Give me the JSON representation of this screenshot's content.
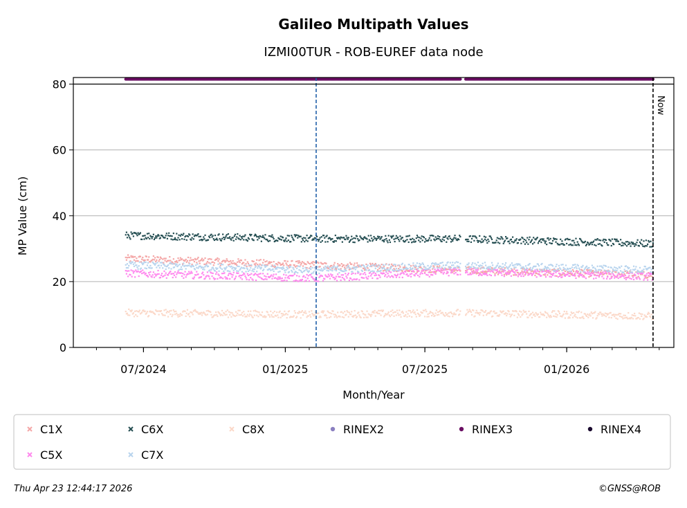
{
  "chart_data": {
    "type": "scatter",
    "title": "Galileo Multipath Values",
    "subtitle": "IZMI00TUR - ROB-EUREF data node",
    "xlabel": "Month/Year",
    "ylabel": "MP Value (cm)",
    "xlim": [
      "2024-04-01",
      "2026-05-20"
    ],
    "ylim": [
      0,
      82
    ],
    "yticks": [
      0,
      20,
      40,
      60,
      80
    ],
    "ytick_labels": [
      "0",
      "20",
      "40",
      "60",
      "80"
    ],
    "xticks": [
      "2024-07-01",
      "2025-01-01",
      "2025-07-01",
      "2026-01-01"
    ],
    "xtick_labels": [
      "07/2024",
      "01/2025",
      "07/2025",
      "01/2026"
    ],
    "grid": "horizontal",
    "data_start": "2024-06-08",
    "data_end": "2026-04-23",
    "gaps": [
      [
        "2025-08-17",
        "2025-08-22"
      ]
    ],
    "event_line_date": "2025-02-10",
    "now_date": "2026-04-23",
    "now_label": "Now",
    "series": [
      {
        "name": "C1X",
        "color": "#f4a6a6",
        "marker": "x",
        "segments": [
          [
            "2024-06-08",
            27
          ],
          [
            "2025-02-10",
            25
          ],
          [
            "2025-08-15",
            23.5
          ],
          [
            "2026-04-23",
            22
          ]
        ]
      },
      {
        "name": "C6X",
        "color": "#254e52",
        "marker": "x",
        "segments": [
          [
            "2024-06-08",
            34
          ],
          [
            "2025-02-10",
            33
          ],
          [
            "2025-08-15",
            33
          ],
          [
            "2026-04-23",
            31.5
          ]
        ]
      },
      {
        "name": "C8X",
        "color": "#fbd8c8",
        "marker": "x",
        "segments": [
          [
            "2024-06-08",
            10.5
          ],
          [
            "2025-02-10",
            10
          ],
          [
            "2025-08-15",
            10.5
          ],
          [
            "2026-04-23",
            9.5
          ]
        ]
      },
      {
        "name": "RINEX2",
        "color": "#8a7fc0",
        "marker": "o",
        "segments": []
      },
      {
        "name": "RINEX3",
        "color": "#6a0f63",
        "marker": "o",
        "value": 81.5,
        "segments": [
          [
            "2024-06-08",
            81.5
          ],
          [
            "2026-04-23",
            81.5
          ]
        ]
      },
      {
        "name": "RINEX4",
        "color": "#1a0a2e",
        "marker": "o",
        "segments": []
      },
      {
        "name": "C5X",
        "color": "#ff88ee",
        "marker": "x",
        "segments": [
          [
            "2024-06-08",
            22.5
          ],
          [
            "2025-02-10",
            21
          ],
          [
            "2025-08-15",
            23
          ],
          [
            "2026-04-23",
            21.5
          ]
        ]
      },
      {
        "name": "C7X",
        "color": "#b8d4ee",
        "marker": "x",
        "segments": [
          [
            "2024-06-08",
            25
          ],
          [
            "2025-02-10",
            23.5
          ],
          [
            "2025-08-15",
            25
          ],
          [
            "2026-04-23",
            23.5
          ]
        ]
      }
    ],
    "legend_position": "bottom"
  },
  "footer": {
    "timestamp": "Thu Apr 23 12:44:17 2026",
    "credit": "©GNSS@ROB"
  }
}
